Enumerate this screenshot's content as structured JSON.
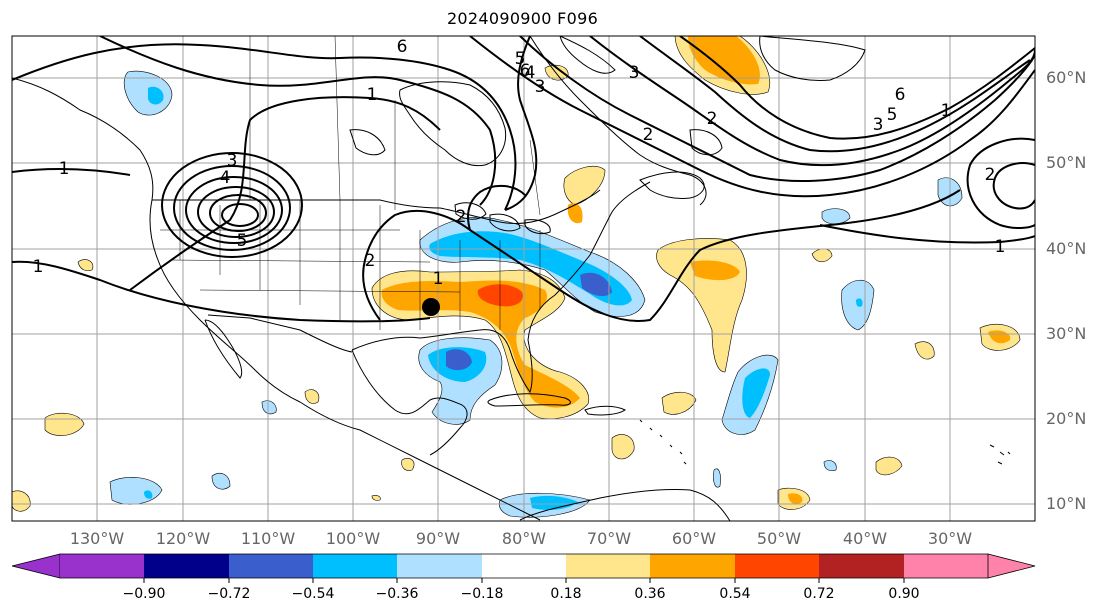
{
  "title": "2024090900 F096",
  "colors": {
    "land_line": "#000000",
    "contour": "#000000",
    "grid": "#a0a0a0",
    "tick_label": "#666666"
  },
  "latitude_labels": [
    "60°N",
    "50°N",
    "40°N",
    "30°N",
    "20°N",
    "10°N"
  ],
  "longitude_labels": [
    "130°W",
    "120°W",
    "110°W",
    "100°W",
    "90°W",
    "80°W",
    "70°W",
    "60°W",
    "50°W",
    "40°W",
    "30°W"
  ],
  "contour_labels": [
    "1",
    "1",
    "1",
    "3",
    "4",
    "5",
    "6",
    "2",
    "1",
    "2",
    "3",
    "4",
    "5",
    "6",
    "6",
    "5",
    "2",
    "3",
    "1",
    "2",
    "1",
    "2",
    "3"
  ],
  "storm_marker": {
    "lat": 33.0,
    "lon": -90.8
  },
  "colorbar": {
    "colors": [
      "#9932cc",
      "#00008b",
      "#3a5fcd",
      "#00bfff",
      "#b0e0ff",
      "#ffffff",
      "#ffe68c",
      "#ffa500",
      "#ff4500",
      "#b22222",
      "#ff82ab"
    ],
    "tick_labels": [
      "−0.90",
      "−0.72",
      "−0.54",
      "−0.36",
      "−0.18",
      "0.18",
      "0.36",
      "0.54",
      "0.72",
      "0.90"
    ],
    "min_extend_color": "#9932cc",
    "max_extend_color": "#ff82ab"
  }
}
